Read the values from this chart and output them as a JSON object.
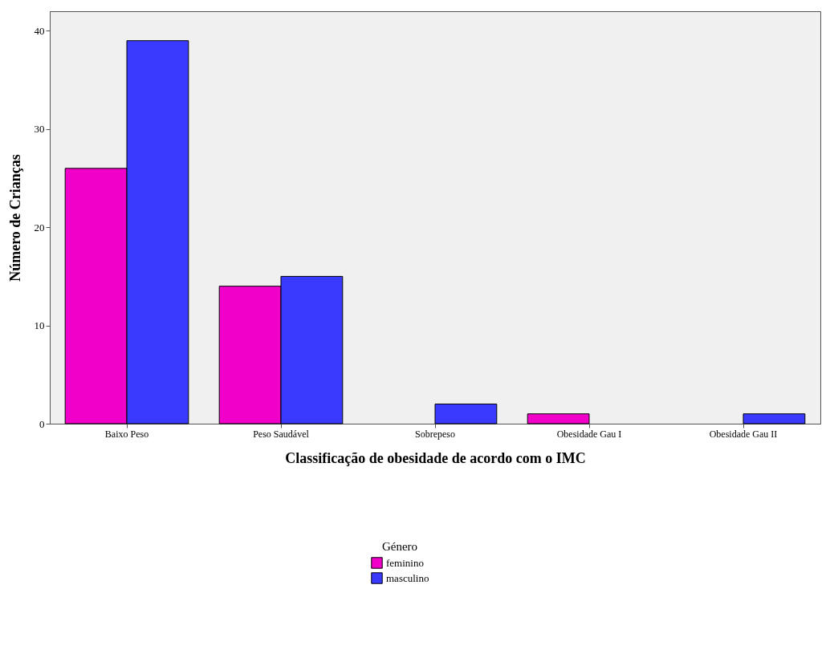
{
  "chart_data": {
    "type": "bar",
    "xlabel": "Classificação de obesidade de acordo com o IMC",
    "ylabel": "Número de Crianças",
    "legend_title": "Género",
    "categories": [
      "Baixo Peso",
      "Peso Saudável",
      "Sobrepeso",
      "Obesidade Gau I",
      "Obesidade Gau II"
    ],
    "series": [
      {
        "name": "feminino",
        "color": "#f000c8",
        "values": [
          26,
          14,
          null,
          1,
          null
        ]
      },
      {
        "name": "masculino",
        "color": "#3a3aff",
        "values": [
          39,
          15,
          2,
          null,
          1
        ]
      }
    ],
    "ylim": [
      0,
      42
    ],
    "yticks": [
      0,
      10,
      20,
      30,
      40
    ],
    "grid": false,
    "legend": "bottom"
  }
}
